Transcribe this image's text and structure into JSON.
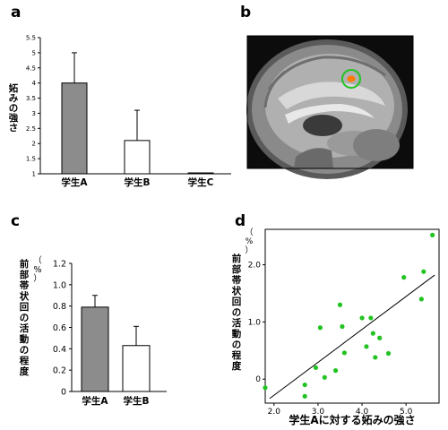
{
  "panels": {
    "a": "a",
    "b": "b",
    "c": "c",
    "d": "d"
  },
  "colors": {
    "gray_bar": "#8c8c8c",
    "white_bar": "#ffffff",
    "point": "#22c322",
    "brain_marker_ring": "#22c322",
    "brain_marker_spot": "#ff7a00"
  },
  "chart_data": [
    {
      "panel": "a",
      "type": "bar",
      "categories": [
        "学生A",
        "学生B",
        "学生C"
      ],
      "values": [
        4.0,
        2.1,
        1.0
      ],
      "errors": [
        1.0,
        1.0,
        0.0
      ],
      "ylabel": "妬みの強さ",
      "ylim": [
        1,
        5.5
      ],
      "yticks": [
        "1",
        "1.5",
        "2",
        "2.5",
        "3",
        "3.5",
        "4",
        "4.5",
        "5",
        "5.5"
      ],
      "bar_colors": [
        "#8c8c8c",
        "#ffffff",
        "#ffffff"
      ]
    },
    {
      "panel": "c",
      "type": "bar",
      "categories": [
        "学生A",
        "学生B"
      ],
      "values": [
        0.79,
        0.43
      ],
      "errors": [
        0.11,
        0.18
      ],
      "ylabel": "前部帯状回の活動の程度",
      "yunit": "（%）",
      "ylim": [
        0,
        1.2
      ],
      "yticks": [
        "0",
        "0.2",
        "0.4",
        "0.6",
        "0.8",
        "1.0",
        "1.2"
      ],
      "bar_colors": [
        "#8c8c8c",
        "#ffffff"
      ]
    },
    {
      "panel": "d",
      "type": "scatter",
      "xlabel": "学生Aに対する妬みの強さ",
      "ylabel": "前部帯状回の活動の程度",
      "yunit": "（%）",
      "xlim": [
        1.8,
        5.75
      ],
      "ylim": [
        -0.42,
        2.62
      ],
      "xticks": [
        "2.0",
        "3.0",
        "4.0",
        "5.0"
      ],
      "yticks": [
        "0",
        "1.0",
        "2.0"
      ],
      "x": [
        1.8,
        2.7,
        2.7,
        2.95,
        3.05,
        3.15,
        3.4,
        3.5,
        3.55,
        3.6,
        4.0,
        4.1,
        4.2,
        4.25,
        4.3,
        4.4,
        4.6,
        4.95,
        5.35,
        5.4,
        5.6
      ],
      "y": [
        -0.15,
        -0.1,
        -0.3,
        0.2,
        0.9,
        0.03,
        0.15,
        1.3,
        0.92,
        0.46,
        1.07,
        0.57,
        1.07,
        0.8,
        0.38,
        0.72,
        0.45,
        1.78,
        1.4,
        1.88,
        2.52
      ],
      "trend": [
        [
          1.9,
          -0.34
        ],
        [
          5.65,
          1.82
        ]
      ]
    }
  ]
}
